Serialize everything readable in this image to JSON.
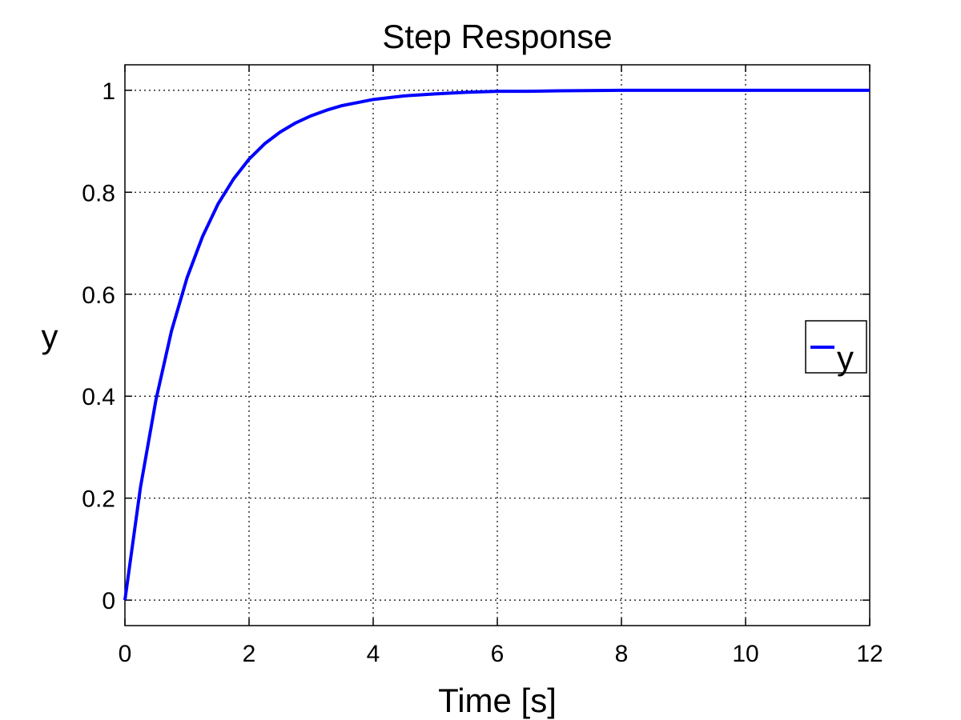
{
  "chart_data": {
    "type": "line",
    "title": "Step Response",
    "xlabel": "Time [s]",
    "ylabel": "y",
    "xlim": [
      0,
      12
    ],
    "ylim": [
      -0.05,
      1.05
    ],
    "xticks": [
      0,
      2,
      4,
      6,
      8,
      10,
      12
    ],
    "yticks": [
      0,
      0.2,
      0.4,
      0.6,
      0.8,
      1
    ],
    "grid": true,
    "legend": {
      "position": "right",
      "entries": [
        "y"
      ]
    },
    "series": [
      {
        "name": "y",
        "color": "#0000ff",
        "x": [
          0,
          0.25,
          0.5,
          0.75,
          1,
          1.25,
          1.5,
          1.75,
          2,
          2.25,
          2.5,
          2.75,
          3,
          3.25,
          3.5,
          3.75,
          4,
          4.5,
          5,
          5.5,
          6,
          6.5,
          7,
          8,
          9,
          10,
          11,
          12
        ],
        "y": [
          0,
          0.221,
          0.393,
          0.528,
          0.632,
          0.713,
          0.777,
          0.826,
          0.865,
          0.895,
          0.918,
          0.936,
          0.95,
          0.961,
          0.97,
          0.976,
          0.982,
          0.989,
          0.993,
          0.996,
          0.998,
          0.998,
          0.999,
          1.0,
          1.0,
          1.0,
          1.0,
          1.0
        ]
      }
    ]
  }
}
